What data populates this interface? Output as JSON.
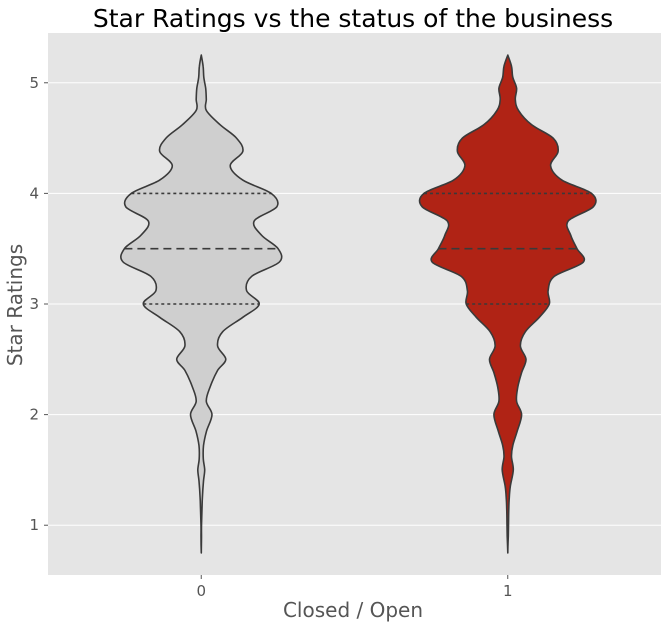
{
  "chart_data": {
    "type": "violin",
    "title": "Star Ratings vs the status of the business",
    "xlabel": "Closed / Open",
    "ylabel": "Star Ratings",
    "categories": [
      "0",
      "1"
    ],
    "ylim": [
      0.55,
      5.45
    ],
    "yticks": [
      1,
      2,
      3,
      4,
      5
    ],
    "grid": true,
    "background_color": "#E5E5E5",
    "grid_color": "#FFFFFF",
    "outline_color": "#3A3A3A",
    "violin_colors": [
      "#CFCFCF",
      "#B02315"
    ],
    "series": [
      {
        "category": "0",
        "quartiles": {
          "q1": 3.0,
          "median": 3.5,
          "q3": 4.0
        },
        "profile": [
          [
            0.75,
            0.0
          ],
          [
            0.9,
            0.002
          ],
          [
            1.0,
            0.002
          ],
          [
            1.15,
            0.006
          ],
          [
            1.25,
            0.009
          ],
          [
            1.4,
            0.018
          ],
          [
            1.5,
            0.027
          ],
          [
            1.6,
            0.016
          ],
          [
            1.72,
            0.018
          ],
          [
            1.85,
            0.042
          ],
          [
            2.0,
            0.085
          ],
          [
            2.12,
            0.04
          ],
          [
            2.25,
            0.07
          ],
          [
            2.4,
            0.13
          ],
          [
            2.5,
            0.195
          ],
          [
            2.62,
            0.13
          ],
          [
            2.75,
            0.17
          ],
          [
            2.88,
            0.33
          ],
          [
            3.0,
            0.46
          ],
          [
            3.12,
            0.36
          ],
          [
            3.25,
            0.4
          ],
          [
            3.38,
            0.62
          ],
          [
            3.5,
            0.61
          ],
          [
            3.62,
            0.48
          ],
          [
            3.75,
            0.42
          ],
          [
            3.88,
            0.6
          ],
          [
            4.0,
            0.555
          ],
          [
            4.12,
            0.33
          ],
          [
            4.25,
            0.23
          ],
          [
            4.38,
            0.33
          ],
          [
            4.5,
            0.28
          ],
          [
            4.62,
            0.15
          ],
          [
            4.75,
            0.04
          ],
          [
            4.85,
            0.04
          ],
          [
            4.95,
            0.035
          ],
          [
            5.05,
            0.02
          ],
          [
            5.15,
            0.015
          ],
          [
            5.25,
            0.0
          ]
        ]
      },
      {
        "category": "1",
        "quartiles": {
          "q1": 3.0,
          "median": 3.5,
          "q3": 4.0
        },
        "profile": [
          [
            0.75,
            0.0
          ],
          [
            0.9,
            0.004
          ],
          [
            1.0,
            0.006
          ],
          [
            1.15,
            0.008
          ],
          [
            1.25,
            0.012
          ],
          [
            1.35,
            0.02
          ],
          [
            1.5,
            0.044
          ],
          [
            1.62,
            0.03
          ],
          [
            1.72,
            0.04
          ],
          [
            1.85,
            0.075
          ],
          [
            2.0,
            0.11
          ],
          [
            2.12,
            0.07
          ],
          [
            2.25,
            0.08
          ],
          [
            2.38,
            0.11
          ],
          [
            2.5,
            0.145
          ],
          [
            2.62,
            0.1
          ],
          [
            2.75,
            0.14
          ],
          [
            2.88,
            0.25
          ],
          [
            3.0,
            0.33
          ],
          [
            3.12,
            0.32
          ],
          [
            3.25,
            0.37
          ],
          [
            3.38,
            0.6
          ],
          [
            3.5,
            0.55
          ],
          [
            3.62,
            0.5
          ],
          [
            3.75,
            0.48
          ],
          [
            3.88,
            0.68
          ],
          [
            4.0,
            0.665
          ],
          [
            4.12,
            0.43
          ],
          [
            4.25,
            0.34
          ],
          [
            4.38,
            0.4
          ],
          [
            4.5,
            0.36
          ],
          [
            4.62,
            0.19
          ],
          [
            4.75,
            0.085
          ],
          [
            4.85,
            0.06
          ],
          [
            4.95,
            0.07
          ],
          [
            5.05,
            0.04
          ],
          [
            5.15,
            0.03
          ],
          [
            5.25,
            0.0
          ]
        ]
      }
    ]
  }
}
